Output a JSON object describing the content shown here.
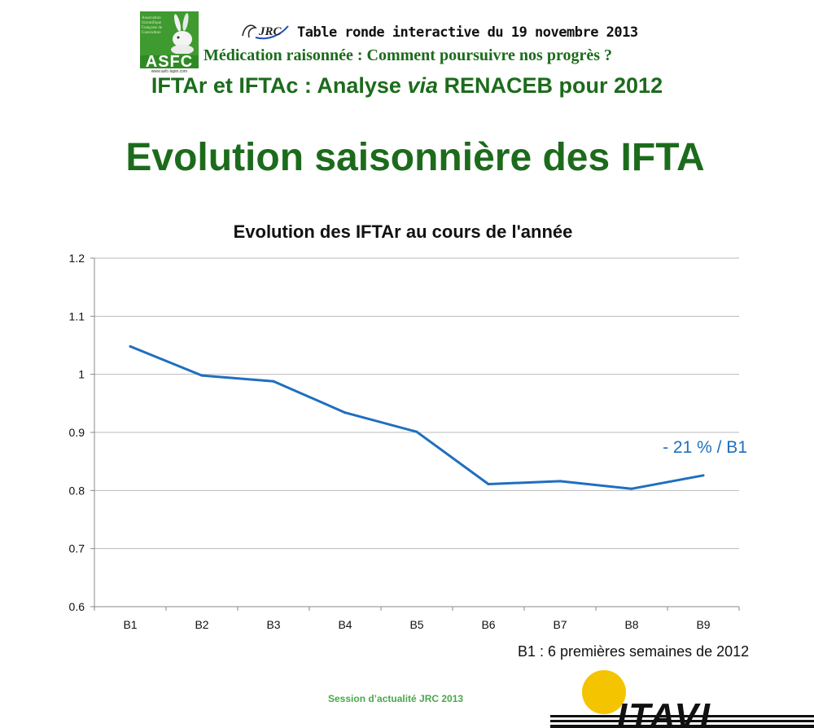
{
  "logos": {
    "asfc": {
      "name": "ASFC",
      "tagline": "Association Scientifique Française de Cuniculture",
      "url": "www.asfc-lapin.com",
      "color": "#3f9a2f"
    },
    "jrc": {
      "name": "JRC"
    },
    "itavi": {
      "name": "ITAVI",
      "sun_color": "#f4c400"
    }
  },
  "header": {
    "line1": "Table ronde interactive du 19 novembre 2013",
    "line2": "Médication raisonnée : Comment poursuivre nos progrès ?",
    "subtitle": "IFTAr et IFTAc : Analyse via RENACEB pour 2012"
  },
  "main_title": "Evolution saisonnière des IFTA",
  "chart_data": {
    "type": "line",
    "title": "Evolution des IFTAr au cours de l'année",
    "xlabel": "",
    "ylabel": "",
    "categories": [
      "B1",
      "B2",
      "B3",
      "B4",
      "B5",
      "B6",
      "B7",
      "B8",
      "B9"
    ],
    "series": [
      {
        "values": [
          1.048,
          0.998,
          0.988,
          0.934,
          0.901,
          0.811,
          0.816,
          0.803,
          0.826
        ],
        "color": "#1f6fbf"
      }
    ],
    "ylim": [
      0.6,
      1.2
    ],
    "yticks": [
      0.6,
      0.7,
      0.8,
      0.9,
      1,
      1.1,
      1.2
    ],
    "ytick_labels": [
      "0.6",
      "0.7",
      "0.8",
      "0.9",
      "1",
      "1.1",
      "1.2"
    ],
    "grid": true,
    "legend": "none",
    "annotation": "- 21 % / B1"
  },
  "footnote": "B1 : 6 premières semaines de 2012",
  "footer": {
    "session": "Session d’actualité JRC 2013"
  }
}
